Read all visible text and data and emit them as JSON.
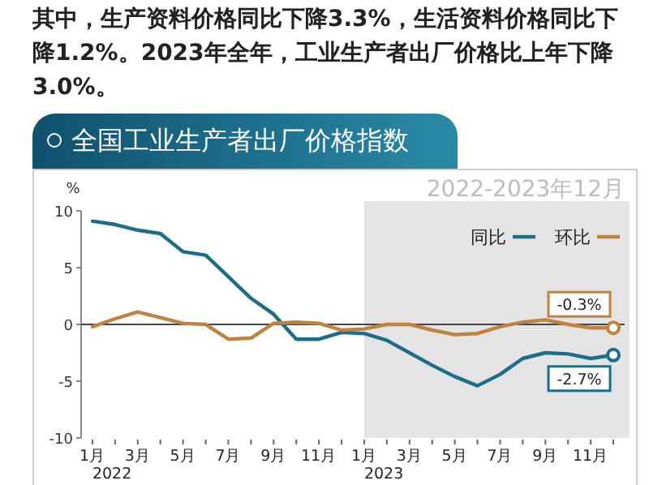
{
  "chart_data": {
    "type": "line",
    "title": "全国工业生产者出厂价格指数",
    "subtitle": "2022-2023年12月",
    "ylabel": "%",
    "annotations": [
      "其中，生产资料价格同比下降3.3%，生活资料价格同比下降1.2%。2023年全年，工业生产者出厂价格比上年下降3.0%。",
      "2022",
      "2023"
    ],
    "x": [
      "2022-01",
      "2022-02",
      "2022-03",
      "2022-04",
      "2022-05",
      "2022-06",
      "2022-07",
      "2022-08",
      "2022-09",
      "2022-10",
      "2022-11",
      "2022-12",
      "2023-01",
      "2023-02",
      "2023-03",
      "2023-04",
      "2023-05",
      "2023-06",
      "2023-07",
      "2023-08",
      "2023-09",
      "2023-10",
      "2023-11",
      "2023-12"
    ],
    "series": [
      {
        "name": "同比",
        "color": "#1c6d89",
        "values": [
          9.1,
          8.8,
          8.3,
          8.0,
          6.4,
          6.1,
          4.2,
          2.3,
          0.9,
          -1.3,
          -1.3,
          -0.7,
          -0.8,
          -1.4,
          -2.5,
          -3.6,
          -4.6,
          -5.4,
          -4.4,
          -3.0,
          -2.5,
          -2.6,
          -3.0,
          -2.7
        ],
        "value_labels": [
          null,
          null,
          null,
          null,
          null,
          null,
          null,
          null,
          null,
          null,
          null,
          null,
          null,
          null,
          null,
          null,
          null,
          null,
          null,
          null,
          null,
          null,
          null,
          "-2.7%"
        ]
      },
      {
        "name": "环比",
        "color": "#c0823e",
        "values": [
          -0.2,
          0.5,
          1.1,
          0.6,
          0.1,
          0.0,
          -1.3,
          -1.2,
          0.1,
          0.2,
          0.1,
          -0.5,
          -0.4,
          0.0,
          0.0,
          -0.5,
          -0.9,
          -0.8,
          -0.2,
          0.2,
          0.4,
          0.0,
          -0.3,
          -0.3
        ],
        "value_labels": [
          null,
          null,
          null,
          null,
          null,
          null,
          null,
          null,
          null,
          null,
          null,
          null,
          null,
          null,
          null,
          null,
          null,
          null,
          null,
          null,
          null,
          null,
          null,
          "-0.3%"
        ]
      }
    ],
    "xlim": [
      "2021-12-16",
      "2023-12-16"
    ],
    "xticks": [
      {
        "value": "2022-01",
        "label": "1月"
      },
      {
        "value": "2022-02",
        "label": null
      },
      {
        "value": "2022-03",
        "label": "3月"
      },
      {
        "value": "2022-04",
        "label": null
      },
      {
        "value": "2022-05",
        "label": "5月"
      },
      {
        "value": "2022-06",
        "label": null
      },
      {
        "value": "2022-07",
        "label": "7月"
      },
      {
        "value": "2022-08",
        "label": null
      },
      {
        "value": "2022-09",
        "label": "9月"
      },
      {
        "value": "2022-10",
        "label": null
      },
      {
        "value": "2022-11",
        "label": "11月"
      },
      {
        "value": "2022-12",
        "label": null
      },
      {
        "value": "2023-01",
        "label": "1月"
      },
      {
        "value": "2023-02",
        "label": null
      },
      {
        "value": "2023-03",
        "label": "3月"
      },
      {
        "value": "2023-04",
        "label": null
      },
      {
        "value": "2023-05",
        "label": "5月"
      },
      {
        "value": "2023-06",
        "label": null
      },
      {
        "value": "2023-07",
        "label": "7月"
      },
      {
        "value": "2023-08",
        "label": null
      },
      {
        "value": "2023-09",
        "label": "9月"
      },
      {
        "value": "2023-10",
        "label": null
      },
      {
        "value": "2023-11",
        "label": "11月"
      },
      {
        "value": "2023-12",
        "label": null
      }
    ],
    "ylim": [
      -10,
      10
    ],
    "yticks": [
      -10,
      -5,
      0,
      5,
      10
    ],
    "ref_lines": [
      {
        "axis": "y",
        "value": 0,
        "color": "#444444"
      }
    ],
    "bands": [
      {
        "axis": "x",
        "from": "2023-01",
        "to": "2023-12-16",
        "color": "#e4e4e4"
      }
    ],
    "grid": false,
    "legend": "top right",
    "marker": "none",
    "line_style": "solid"
  }
}
